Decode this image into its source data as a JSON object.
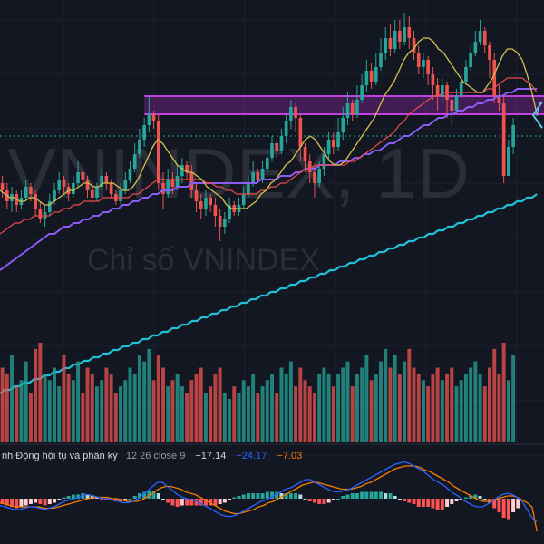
{
  "watermark": {
    "symbol": "VNINDEX, 1D",
    "description": "Chỉ số VNINDEX"
  },
  "colors": {
    "background": "#131722",
    "grid": "#1e222d",
    "up": "#26a69a",
    "down": "#ef5350",
    "ma_fast": "#d4c04c",
    "ma_mid": "#e84b4b",
    "ma_slow": "#8b5cf6",
    "ma_long": "#22c0d6",
    "zone_fill": "rgba(156,39,176,0.35)",
    "zone_border": "#c040e0",
    "macd_line": "#2962ff",
    "signal_line": "#f57c00",
    "price_line": "#26a69a"
  },
  "macd_legend": {
    "name": "nh Động hội tụ và phân kỳ",
    "params": "12 26 close 9",
    "macd": "−17.14",
    "signal": "−24.17",
    "histogram": "−7.03"
  },
  "chart_data": {
    "type": "candlestick",
    "x_count": 115,
    "y_range": [
      0,
      100
    ],
    "resistance_zone": [
      71,
      76
    ],
    "dotted_level": 65,
    "candles": [
      [
        52,
        50,
        54,
        48
      ],
      [
        50,
        47,
        52,
        45
      ],
      [
        47,
        49,
        51,
        44
      ],
      [
        49,
        46,
        50,
        44
      ],
      [
        46,
        48,
        50,
        45
      ],
      [
        48,
        51,
        53,
        47
      ],
      [
        51,
        49,
        52,
        47
      ],
      [
        49,
        45,
        50,
        43
      ],
      [
        45,
        42,
        47,
        41
      ],
      [
        42,
        44,
        46,
        40
      ],
      [
        44,
        47,
        49,
        43
      ],
      [
        47,
        50,
        52,
        46
      ],
      [
        50,
        53,
        55,
        49
      ],
      [
        53,
        51,
        54,
        49
      ],
      [
        51,
        49,
        52,
        47
      ],
      [
        49,
        52,
        54,
        48
      ],
      [
        52,
        55,
        58,
        51
      ],
      [
        55,
        53,
        56,
        51
      ],
      [
        53,
        50,
        54,
        48
      ],
      [
        50,
        48,
        51,
        46
      ],
      [
        48,
        51,
        52,
        47
      ],
      [
        51,
        54,
        56,
        50
      ],
      [
        54,
        52,
        55,
        50
      ],
      [
        52,
        49,
        53,
        48
      ],
      [
        49,
        47,
        50,
        46
      ],
      [
        47,
        50,
        52,
        46
      ],
      [
        50,
        53,
        55,
        49
      ],
      [
        53,
        56,
        58,
        52
      ],
      [
        56,
        60,
        63,
        55
      ],
      [
        60,
        64,
        67,
        59
      ],
      [
        64,
        68,
        70,
        62
      ],
      [
        68,
        71,
        76,
        66
      ],
      [
        71,
        69,
        72,
        67
      ],
      [
        69,
        52,
        71,
        50
      ],
      [
        52,
        49,
        55,
        45
      ],
      [
        49,
        53,
        56,
        48
      ],
      [
        53,
        51,
        55,
        49
      ],
      [
        51,
        54,
        57,
        50
      ],
      [
        54,
        57,
        59,
        52
      ],
      [
        57,
        55,
        58,
        53
      ],
      [
        55,
        50,
        57,
        48
      ],
      [
        50,
        47,
        52,
        44
      ],
      [
        47,
        45,
        49,
        42
      ],
      [
        45,
        48,
        50,
        43
      ],
      [
        48,
        46,
        49,
        44
      ],
      [
        46,
        43,
        48,
        40
      ],
      [
        43,
        40,
        45,
        36
      ],
      [
        40,
        42,
        44,
        38
      ],
      [
        42,
        46,
        48,
        41
      ],
      [
        46,
        44,
        47,
        43
      ],
      [
        44,
        46,
        48,
        43
      ],
      [
        46,
        49,
        51,
        45
      ],
      [
        49,
        52,
        54,
        48
      ],
      [
        52,
        55,
        58,
        51
      ],
      [
        55,
        53,
        56,
        52
      ],
      [
        53,
        56,
        58,
        52
      ],
      [
        56,
        59,
        61,
        55
      ],
      [
        59,
        63,
        65,
        58
      ],
      [
        63,
        61,
        64,
        59
      ],
      [
        61,
        65,
        67,
        60
      ],
      [
        65,
        69,
        71,
        63
      ],
      [
        69,
        73,
        75,
        67
      ],
      [
        73,
        70,
        74,
        66
      ],
      [
        70,
        62,
        71,
        58
      ],
      [
        62,
        58,
        63,
        55
      ],
      [
        58,
        55,
        60,
        52
      ],
      [
        55,
        52,
        57,
        48
      ],
      [
        52,
        56,
        58,
        51
      ],
      [
        56,
        60,
        62,
        54
      ],
      [
        60,
        64,
        66,
        58
      ],
      [
        64,
        62,
        66,
        60
      ],
      [
        62,
        66,
        70,
        61
      ],
      [
        66,
        70,
        73,
        64
      ],
      [
        70,
        74,
        77,
        68
      ],
      [
        74,
        71,
        75,
        69
      ],
      [
        71,
        75,
        79,
        70
      ],
      [
        75,
        79,
        82,
        74
      ],
      [
        79,
        83,
        86,
        77
      ],
      [
        83,
        80,
        85,
        78
      ],
      [
        80,
        84,
        88,
        79
      ],
      [
        84,
        88,
        92,
        83
      ],
      [
        88,
        92,
        95,
        86
      ],
      [
        92,
        89,
        96,
        87
      ],
      [
        89,
        94,
        97,
        88
      ],
      [
        94,
        91,
        97,
        89
      ],
      [
        91,
        95,
        99,
        90
      ],
      [
        95,
        92,
        98,
        89
      ],
      [
        92,
        88,
        94,
        86
      ],
      [
        88,
        84,
        90,
        82
      ],
      [
        84,
        86,
        88,
        81
      ],
      [
        86,
        82,
        87,
        79
      ],
      [
        82,
        79,
        84,
        75
      ],
      [
        79,
        76,
        81,
        72
      ],
      [
        76,
        79,
        81,
        74
      ],
      [
        79,
        75,
        80,
        70
      ],
      [
        75,
        72,
        77,
        68
      ],
      [
        72,
        76,
        78,
        71
      ],
      [
        76,
        80,
        82,
        75
      ],
      [
        80,
        84,
        86,
        79
      ],
      [
        84,
        88,
        90,
        83
      ],
      [
        88,
        91,
        94,
        87
      ],
      [
        91,
        94,
        97,
        90
      ],
      [
        94,
        90,
        95,
        88
      ],
      [
        90,
        86,
        91,
        81
      ],
      [
        86,
        76,
        88,
        74
      ],
      [
        76,
        74,
        79,
        72
      ],
      [
        74,
        54,
        76,
        52
      ],
      [
        54,
        62,
        64,
        54
      ],
      [
        62,
        68,
        70,
        60
      ]
    ],
    "ma_fast": [
      50,
      49,
      48,
      48,
      47,
      47,
      48,
      48,
      47,
      46,
      46,
      47,
      48,
      49,
      50,
      50,
      51,
      52,
      52,
      51,
      51,
      52,
      52,
      52,
      51,
      50,
      50,
      51,
      53,
      56,
      59,
      62,
      64,
      63,
      61,
      59,
      57,
      56,
      55,
      55,
      54,
      53,
      51,
      50,
      49,
      48,
      46,
      45,
      45,
      45,
      45,
      46,
      47,
      49,
      50,
      52,
      53,
      55,
      57,
      58,
      60,
      62,
      64,
      65,
      64,
      62,
      60,
      58,
      57,
      57,
      58,
      60,
      62,
      64,
      66,
      68,
      70,
      73,
      76,
      78,
      80,
      83,
      86,
      88,
      89,
      91,
      92,
      92,
      91,
      89,
      88,
      86,
      84,
      82,
      80,
      79,
      78,
      77,
      77,
      79,
      81,
      84,
      87,
      89,
      89,
      88,
      86,
      82,
      77,
      71
    ],
    "ma_mid": [
      38,
      39,
      40,
      41,
      41,
      42,
      42,
      43,
      43,
      43,
      43,
      44,
      44,
      45,
      45,
      46,
      46,
      47,
      47,
      47,
      47,
      48,
      48,
      48,
      48,
      48,
      48,
      49,
      49,
      50,
      51,
      52,
      53,
      53,
      53,
      53,
      53,
      53,
      53,
      53,
      53,
      53,
      52,
      52,
      51,
      51,
      50,
      50,
      49,
      49,
      49,
      49,
      49,
      50,
      50,
      51,
      51,
      52,
      52,
      53,
      54,
      55,
      56,
      56,
      57,
      57,
      57,
      57,
      57,
      57,
      57,
      58,
      58,
      59,
      60,
      61,
      62,
      63,
      64,
      65,
      66,
      68,
      69,
      71,
      72,
      73,
      74,
      75,
      76,
      76,
      77,
      77,
      77,
      77,
      77,
      77,
      77,
      77,
      77,
      78,
      78,
      79,
      80,
      81,
      81,
      81,
      81,
      80,
      79,
      77
    ],
    "ma_slow": [
      28,
      29,
      30,
      31,
      32,
      33,
      34,
      35,
      36,
      37,
      38,
      38,
      39,
      40,
      40,
      41,
      41,
      42,
      42,
      43,
      43,
      44,
      44,
      45,
      45,
      46,
      46,
      47,
      47,
      48,
      48,
      49,
      49,
      50,
      50,
      50,
      51,
      51,
      51,
      52,
      52,
      52,
      52,
      52,
      52,
      52,
      52,
      52,
      52,
      52,
      52,
      52,
      52,
      53,
      53,
      53,
      53,
      54,
      54,
      54,
      55,
      55,
      56,
      56,
      56,
      57,
      57,
      57,
      57,
      58,
      58,
      58,
      59,
      59,
      60,
      60,
      61,
      61,
      62,
      63,
      63,
      64,
      65,
      65,
      66,
      67,
      68,
      68,
      69,
      70,
      70,
      71,
      71,
      72,
      72,
      73,
      73,
      74,
      74,
      75,
      75,
      76,
      76,
      77,
      77,
      78,
      78,
      78,
      78,
      78
    ],
    "ma_long": [
      -6,
      -5,
      -5,
      -4,
      -4,
      -3,
      -3,
      -2,
      -2,
      -1,
      -1,
      0,
      0,
      1,
      1,
      2,
      2,
      3,
      3,
      4,
      4,
      5,
      5,
      6,
      6,
      7,
      7,
      8,
      8,
      9,
      9,
      10,
      10,
      11,
      11,
      12,
      12,
      13,
      13,
      14,
      14,
      15,
      15,
      16,
      16,
      17,
      17,
      18,
      18,
      19,
      19,
      20,
      20,
      21,
      21,
      22,
      22,
      23,
      23,
      24,
      24,
      25,
      25,
      26,
      26,
      27,
      27,
      28,
      28,
      29,
      29,
      30,
      30,
      31,
      31,
      32,
      32,
      33,
      33,
      34,
      34,
      35,
      35,
      36,
      36,
      37,
      37,
      38,
      38,
      39,
      39,
      40,
      40,
      41,
      41,
      42,
      42,
      43,
      43,
      44,
      44,
      45,
      45,
      46,
      46,
      47,
      47,
      48,
      48,
      49
    ],
    "volume": [
      60,
      55,
      70,
      45,
      50,
      65,
      40,
      75,
      80,
      55,
      50,
      60,
      45,
      70,
      55,
      50,
      65,
      40,
      60,
      55,
      45,
      50,
      60,
      55,
      40,
      45,
      50,
      60,
      55,
      70,
      65,
      75,
      50,
      70,
      60,
      45,
      50,
      55,
      45,
      40,
      50,
      55,
      60,
      40,
      45,
      55,
      60,
      40,
      35,
      45,
      40,
      50,
      45,
      55,
      40,
      45,
      50,
      55,
      40,
      60,
      55,
      65,
      45,
      60,
      50,
      45,
      40,
      55,
      60,
      55,
      45,
      55,
      60,
      65,
      45,
      55,
      60,
      70,
      50,
      55,
      65,
      75,
      60,
      70,
      55,
      65,
      75,
      60,
      55,
      50,
      45,
      55,
      60,
      50,
      55,
      60,
      45,
      50,
      55,
      60,
      65,
      55,
      45,
      60,
      75,
      55,
      80,
      50,
      70
    ],
    "macd": [
      -5,
      -6,
      -7,
      -8,
      -8,
      -7,
      -6,
      -6,
      -7,
      -8,
      -7,
      -6,
      -4,
      -2,
      -1,
      0,
      1,
      3,
      3,
      2,
      1,
      0,
      0,
      -1,
      -2,
      -3,
      -3,
      -2,
      0,
      3,
      6,
      9,
      12,
      12,
      9,
      6,
      3,
      1,
      0,
      -1,
      -2,
      -4,
      -6,
      -8,
      -10,
      -12,
      -13,
      -13,
      -12,
      -10,
      -8,
      -6,
      -4,
      -2,
      -1,
      1,
      3,
      5,
      7,
      8,
      10,
      12,
      14,
      14,
      12,
      10,
      8,
      6,
      5,
      5,
      6,
      7,
      9,
      11,
      13,
      15,
      17,
      19,
      21,
      23,
      25,
      26,
      27,
      26,
      24,
      22,
      20,
      17,
      14,
      12,
      10,
      7,
      4,
      2,
      -1,
      -3,
      -5,
      -6,
      -6,
      -4,
      -2,
      1,
      3,
      4,
      3,
      1,
      -2,
      -8,
      -14,
      -17
    ],
    "signal": [
      -3,
      -4,
      -5,
      -6,
      -6,
      -6,
      -6,
      -6,
      -6,
      -7,
      -7,
      -7,
      -6,
      -5,
      -4,
      -3,
      -2,
      -1,
      0,
      1,
      1,
      1,
      1,
      0,
      0,
      -1,
      -2,
      -2,
      -2,
      -1,
      1,
      3,
      6,
      8,
      9,
      9,
      8,
      7,
      5,
      4,
      3,
      1,
      -1,
      -3,
      -5,
      -7,
      -9,
      -10,
      -11,
      -11,
      -10,
      -9,
      -8,
      -6,
      -5,
      -3,
      -2,
      0,
      2,
      4,
      6,
      8,
      10,
      11,
      12,
      12,
      11,
      10,
      9,
      8,
      7,
      7,
      7,
      8,
      9,
      11,
      12,
      14,
      16,
      18,
      20,
      22,
      23,
      24,
      24,
      24,
      23,
      21,
      20,
      18,
      16,
      14,
      12,
      9,
      7,
      5,
      3,
      1,
      -1,
      -2,
      -2,
      -1,
      0,
      1,
      2,
      2,
      1,
      -1,
      -3,
      -6,
      -24
    ],
    "macd_hist": [
      -4,
      -5,
      -6,
      -7,
      -6,
      -5,
      -4,
      -3,
      -4,
      -5,
      -4,
      -3,
      -1,
      1,
      2,
      3,
      3,
      4,
      3,
      2,
      1,
      -1,
      -1,
      -1,
      -2,
      -2,
      -1,
      0,
      2,
      4,
      5,
      6,
      6,
      4,
      0,
      -3,
      -5,
      -6,
      -5,
      -5,
      -5,
      -5,
      -5,
      -5,
      -5,
      -5,
      -4,
      -3,
      -1,
      1,
      2,
      3,
      4,
      4,
      4,
      4,
      5,
      5,
      5,
      4,
      4,
      4,
      4,
      3,
      0,
      -2,
      -3,
      -4,
      -4,
      -3,
      -1,
      0,
      2,
      3,
      4,
      4,
      5,
      5,
      5,
      5,
      5,
      4,
      4,
      2,
      0,
      -2,
      -3,
      -4,
      -6,
      -6,
      -6,
      -7,
      -8,
      -8,
      -6,
      -4,
      -2,
      -1,
      1,
      2,
      3,
      2,
      0,
      -3,
      -7,
      -10,
      -14,
      -15,
      -10,
      -7
    ]
  }
}
